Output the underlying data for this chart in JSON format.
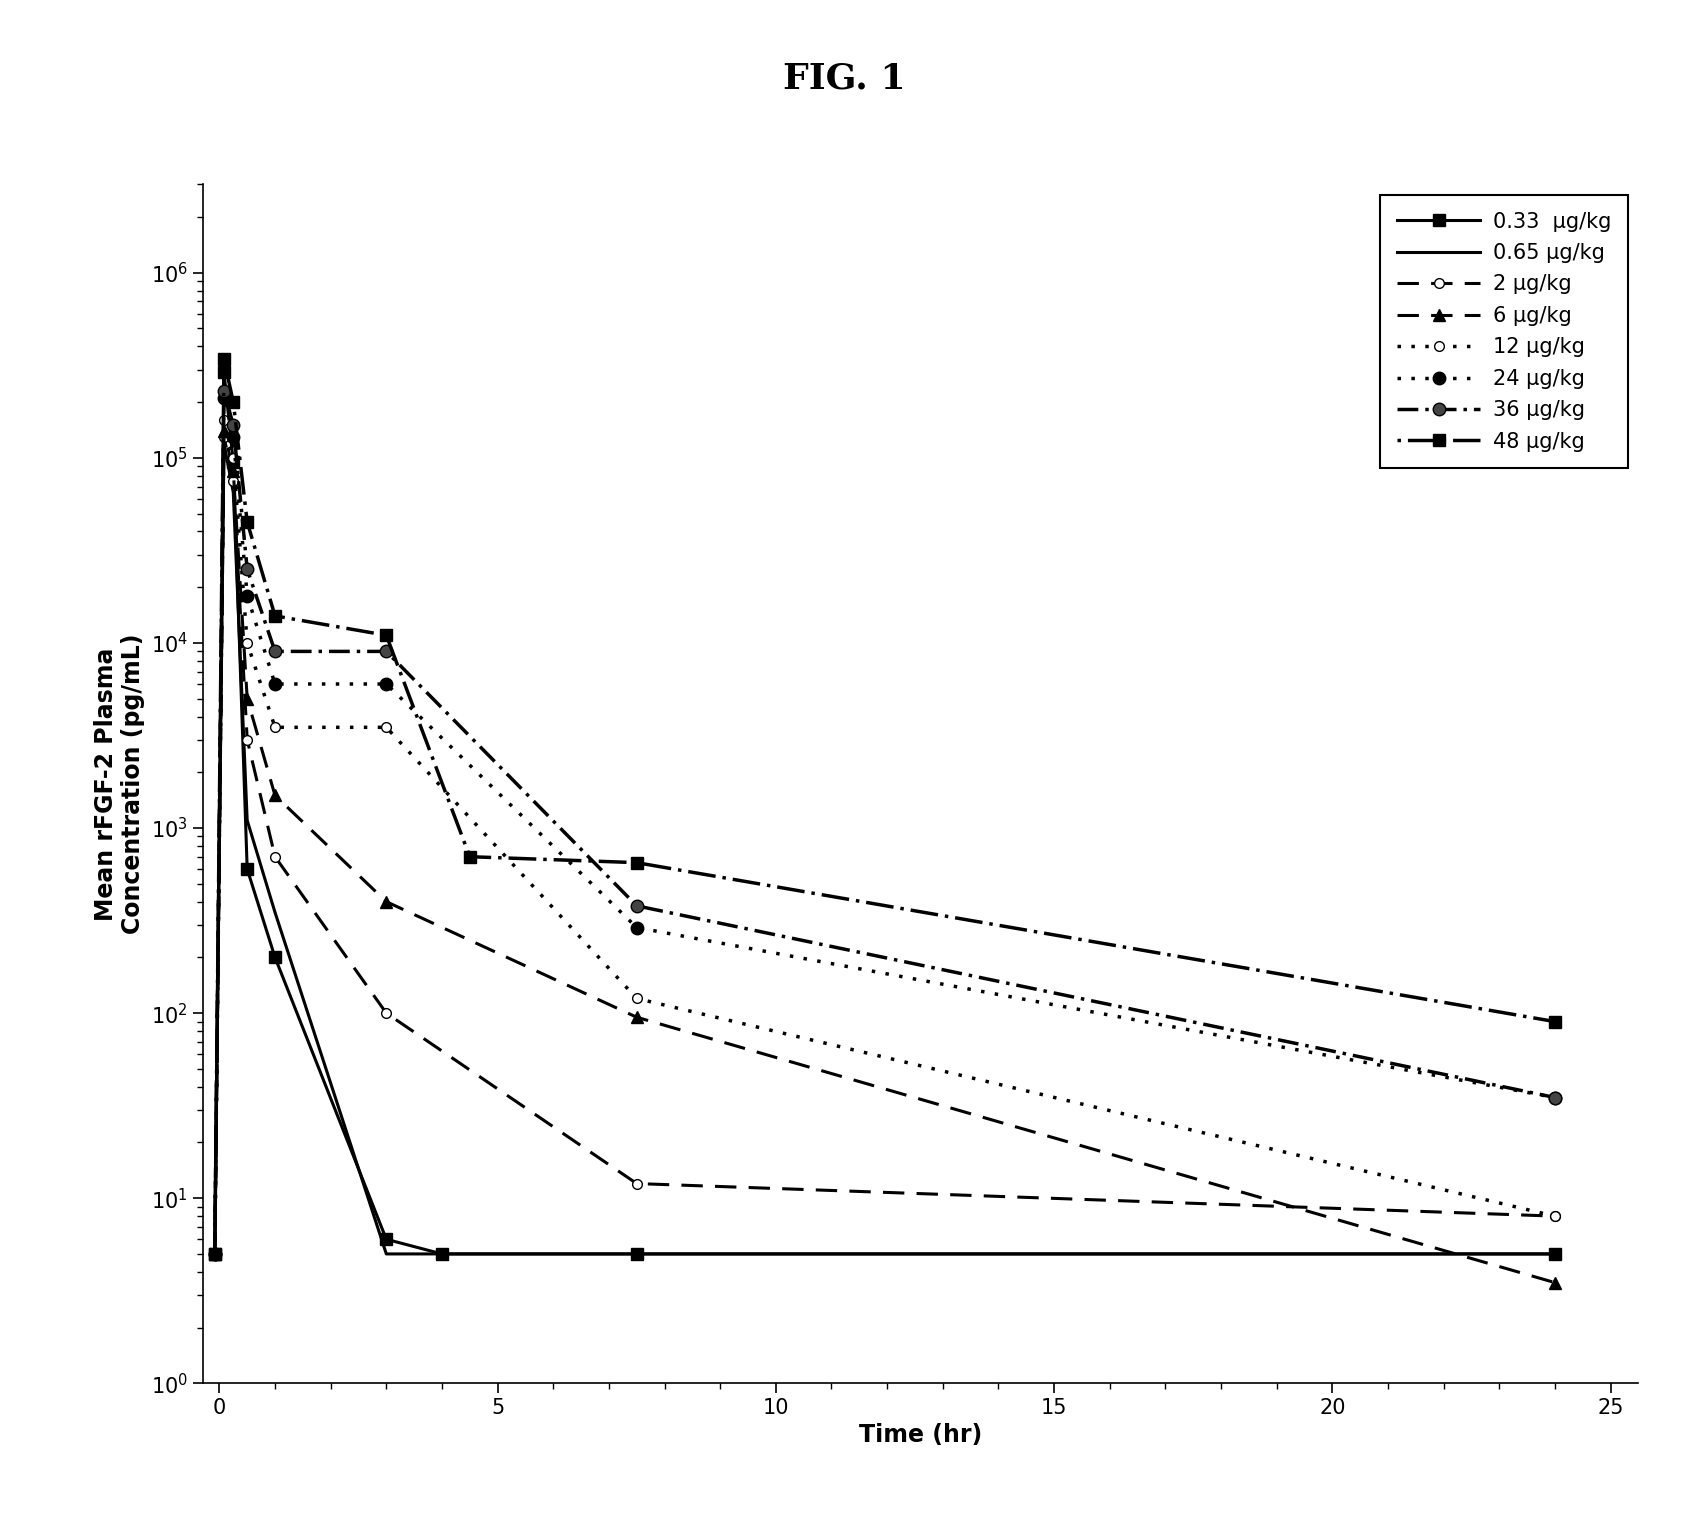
{
  "title": "FIG. 1",
  "xlabel": "Time (hr)",
  "ylabel": "Mean rFGF-2 Plasma\nConcentration (pg/mL)",
  "xlim": [
    -0.3,
    25.5
  ],
  "ylim_log": [
    1,
    3000000
  ],
  "xticks": [
    0,
    5,
    10,
    15,
    20,
    25
  ],
  "series": [
    {
      "label": "0.33  μg/kg",
      "x": [
        -0.083,
        0.083,
        0.25,
        0.5,
        1.0,
        3.0,
        4.0,
        7.5,
        24.0
      ],
      "y": [
        5,
        290000,
        95000,
        600,
        200,
        6,
        5,
        5,
        5
      ],
      "linestyle": "-",
      "marker": "s",
      "markersize": 9,
      "linewidth": 2.2,
      "color": "#000000",
      "markerfacecolor": "#000000",
      "dashes": []
    },
    {
      "label": "0.65 μg/kg",
      "x": [
        -0.083,
        0.083,
        0.25,
        0.5,
        1.0,
        3.0,
        7.5,
        24.0
      ],
      "y": [
        5,
        120000,
        65000,
        1100,
        350,
        5,
        5,
        5
      ],
      "linestyle": "-",
      "marker": "None",
      "markersize": 0,
      "linewidth": 2.2,
      "color": "#000000",
      "markerfacecolor": "#000000",
      "dashes": []
    },
    {
      "label": "2 μg/kg",
      "x": [
        -0.083,
        0.083,
        0.25,
        0.5,
        1.0,
        3.0,
        7.5,
        24.0
      ],
      "y": [
        5,
        130000,
        75000,
        3000,
        700,
        100,
        12,
        8
      ],
      "linestyle": "--",
      "marker": "o",
      "markersize": 7,
      "linewidth": 2.2,
      "color": "#000000",
      "markerfacecolor": "#ffffff",
      "dashes": [
        8,
        4
      ]
    },
    {
      "label": "6 μg/kg",
      "x": [
        -0.083,
        0.083,
        0.25,
        0.5,
        1.0,
        3.0,
        7.5,
        24.0
      ],
      "y": [
        5,
        140000,
        85000,
        5000,
        1500,
        400,
        95,
        3.5
      ],
      "linestyle": "--",
      "marker": "^",
      "markersize": 9,
      "linewidth": 2.2,
      "color": "#000000",
      "markerfacecolor": "#000000",
      "dashes": [
        8,
        4
      ]
    },
    {
      "label": "12 μg/kg",
      "x": [
        -0.083,
        0.083,
        0.25,
        0.5,
        1.0,
        3.0,
        7.5,
        24.0
      ],
      "y": [
        5,
        160000,
        100000,
        10000,
        3500,
        3500,
        120,
        8
      ],
      "linestyle": ":",
      "marker": "o",
      "markersize": 7,
      "linewidth": 2.5,
      "color": "#000000",
      "markerfacecolor": "#ffffff",
      "dashes": [
        2,
        3
      ]
    },
    {
      "label": "24 μg/kg",
      "x": [
        -0.083,
        0.083,
        0.25,
        0.5,
        1.0,
        3.0,
        7.5,
        24.0
      ],
      "y": [
        5,
        210000,
        130000,
        18000,
        6000,
        6000,
        290,
        35
      ],
      "linestyle": ":",
      "marker": "o",
      "markersize": 9,
      "linewidth": 2.5,
      "color": "#000000",
      "markerfacecolor": "#000000",
      "dashes": [
        2,
        3
      ]
    },
    {
      "label": "36 μg/kg",
      "x": [
        -0.083,
        0.083,
        0.25,
        0.5,
        1.0,
        3.0,
        7.5,
        24.0
      ],
      "y": [
        5,
        230000,
        150000,
        25000,
        9000,
        9000,
        380,
        35
      ],
      "linestyle": "-.",
      "marker": "o",
      "markersize": 9,
      "linewidth": 2.5,
      "color": "#000000",
      "markerfacecolor": "#444444",
      "dashes": [
        8,
        2,
        2,
        2
      ]
    },
    {
      "label": "48 μg/kg",
      "x": [
        -0.083,
        0.083,
        0.25,
        0.5,
        1.0,
        3.0,
        4.5,
        7.5,
        24.0
      ],
      "y": [
        5,
        340000,
        200000,
        45000,
        14000,
        11000,
        700,
        650,
        90
      ],
      "linestyle": "-",
      "marker": "s",
      "markersize": 9,
      "linewidth": 2.5,
      "color": "#000000",
      "markerfacecolor": "#000000",
      "dashes": [
        10,
        2,
        2,
        2,
        2,
        2
      ]
    }
  ],
  "background_color": "#ffffff",
  "title_fontsize": 26,
  "label_fontsize": 17,
  "tick_fontsize": 15,
  "legend_fontsize": 15
}
